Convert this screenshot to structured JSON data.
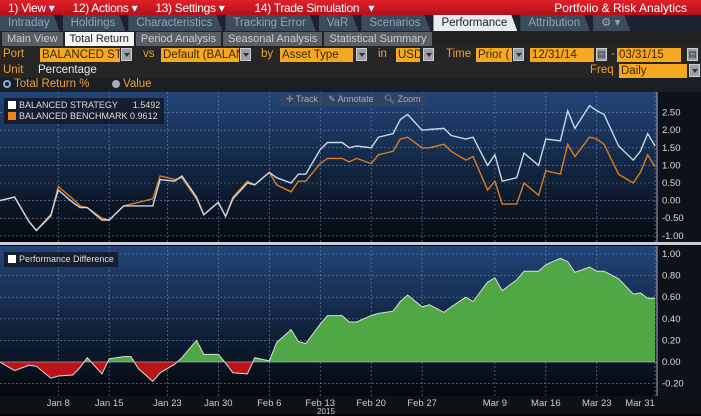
{
  "menu": {
    "items": [
      "1) View",
      "12) Actions",
      "13) Settings",
      "14) Trade Simulation"
    ],
    "title": "Portfolio & Risk Analytics"
  },
  "tabs": [
    "Intraday",
    "Holdings",
    "Characteristics",
    "Tracking Error",
    "VaR",
    "Scenarios",
    "Performance",
    "Attribution"
  ],
  "active_tab": "Performance",
  "subtabs": [
    "Main View",
    "Total Return",
    "Period Analysis",
    "Seasonal Analysis",
    "Statistical Summary"
  ],
  "active_subtab": "Total Return",
  "params": {
    "port_label": "Port",
    "port_value": "BALANCED STRA",
    "vs_label": "vs",
    "vs_value": "Default (BALAN",
    "by_label": "by",
    "by_value": "Asset Type",
    "in_label": "in",
    "in_value": "USD",
    "time_label": "Time",
    "time_value": "Prior (",
    "start_date": "12/31/14",
    "end_date": "03/31/15",
    "unit_label": "Unit",
    "unit_value": "Percentage",
    "freq_label": "Freq",
    "freq_value": "Daily"
  },
  "radios": {
    "option1": "Total Return %",
    "option2": "Value",
    "selected": "Total Return %"
  },
  "toolbar": {
    "track": "Track",
    "annotate": "Annotate",
    "zoom": "Zoom"
  },
  "colors": {
    "menu": "#c8141f",
    "accent": "#f7a823",
    "strategy": "#c8d8ec",
    "benchmark": "#e07a1e",
    "positive": "#4caf45",
    "negative": "#c0161a"
  },
  "chart_data": [
    {
      "type": "line",
      "legend_position": "top-left",
      "grid": true,
      "ylim": [
        -1.1,
        2.9
      ],
      "yticks": [
        "2.50",
        "2.00",
        "1.50",
        "1.00",
        "0.50",
        "0.00",
        "-0.50",
        "-1.00"
      ],
      "x": [
        "2014-12-31",
        "2015-01-02",
        "2015-01-04",
        "2015-01-05",
        "2015-01-07",
        "2015-01-08",
        "2015-01-10",
        "2015-01-11",
        "2015-01-12",
        "2015-01-14",
        "2015-01-15",
        "2015-01-17",
        "2015-01-18",
        "2015-01-19",
        "2015-01-21",
        "2015-01-22",
        "2015-01-24",
        "2015-01-25",
        "2015-01-27",
        "2015-01-28",
        "2015-01-30",
        "2015-01-31",
        "2015-02-01",
        "2015-02-03",
        "2015-02-04",
        "2015-02-06",
        "2015-02-07",
        "2015-02-09",
        "2015-02-10",
        "2015-02-11",
        "2015-02-13",
        "2015-02-14",
        "2015-02-16",
        "2015-02-17",
        "2015-02-18",
        "2015-02-20",
        "2015-02-21",
        "2015-02-23",
        "2015-02-24",
        "2015-02-25",
        "2015-02-27",
        "2015-02-28",
        "2015-03-02",
        "2015-03-03",
        "2015-03-05",
        "2015-03-06",
        "2015-03-08",
        "2015-03-09",
        "2015-03-10",
        "2015-03-12",
        "2015-03-13",
        "2015-03-15",
        "2015-03-16",
        "2015-03-18",
        "2015-03-19",
        "2015-03-20",
        "2015-03-22",
        "2015-03-23",
        "2015-03-24",
        "2015-03-26",
        "2015-03-28",
        "2015-03-29",
        "2015-03-30",
        "2015-03-31"
      ],
      "series": [
        {
          "name": "BALANCED STRATEGY",
          "last": "1.5492",
          "values": [
            0,
            0.1,
            -0.6,
            -0.85,
            -0.4,
            0.3,
            -0.05,
            -0.2,
            -0.2,
            -0.55,
            -0.55,
            -0.15,
            -0.15,
            -0.15,
            -0.15,
            0.6,
            0.55,
            0.7,
            0.1,
            -0.4,
            -0.05,
            -0.45,
            0.05,
            0.5,
            0.45,
            0.8,
            0.65,
            0.5,
            0.75,
            0.75,
            1.45,
            1.65,
            1.65,
            1.5,
            1.55,
            1.5,
            1.8,
            1.9,
            2.3,
            2.45,
            2.0,
            2.02,
            2.05,
            1.85,
            1.75,
            1.8,
            1.0,
            1.3,
            0.55,
            0.65,
            1.35,
            1.0,
            1.75,
            1.7,
            2.55,
            2.05,
            2.7,
            2.55,
            2.45,
            1.55,
            1.15,
            1.4,
            1.9,
            1.55
          ]
        },
        {
          "name": "BALANCED BENCHMARK",
          "last": "0.9612",
          "values": [
            0,
            0.1,
            -0.6,
            -0.85,
            -0.45,
            0.4,
            0.05,
            -0.15,
            -0.2,
            -0.5,
            -0.55,
            -0.15,
            -0.1,
            -0.05,
            0.05,
            0.7,
            0.6,
            0.65,
            0.05,
            -0.4,
            -0.05,
            -0.45,
            0.1,
            0.55,
            0.45,
            0.8,
            0.45,
            0.25,
            0.55,
            0.55,
            1.05,
            1.2,
            1.2,
            1.1,
            1.2,
            1.05,
            1.3,
            1.4,
            1.75,
            1.8,
            1.5,
            1.5,
            1.6,
            1.4,
            1.15,
            1.25,
            0.3,
            0.55,
            -0.1,
            -0.1,
            0.5,
            0.15,
            0.85,
            0.75,
            1.6,
            1.25,
            1.8,
            1.75,
            1.6,
            0.75,
            0.5,
            0.8,
            1.3,
            0.96
          ]
        }
      ]
    },
    {
      "type": "area",
      "legend_position": "top-left",
      "grid": true,
      "ylim": [
        -0.28,
        1.04
      ],
      "yticks": [
        "1.00",
        "0.80",
        "0.60",
        "0.40",
        "0.20",
        "0.00",
        "-0.20"
      ],
      "series": [
        {
          "name": "Performance Difference",
          "values": [
            0,
            -0.08,
            -0.03,
            -0.04,
            -0.15,
            -0.13,
            -0.12,
            -0.05,
            0.04,
            -0.11,
            0.03,
            0.05,
            0.05,
            -0.06,
            -0.18,
            -0.1,
            -0.02,
            0.04,
            0.2,
            0.07,
            0.07,
            -0.01,
            -0.1,
            -0.11,
            0.04,
            0.01,
            0.18,
            0.3,
            0.19,
            0.17,
            0.35,
            0.43,
            0.43,
            0.37,
            0.37,
            0.43,
            0.45,
            0.47,
            0.56,
            0.62,
            0.51,
            0.53,
            0.46,
            0.51,
            0.6,
            0.56,
            0.74,
            0.78,
            0.66,
            0.76,
            0.84,
            0.84,
            0.9,
            0.96,
            0.93,
            0.83,
            0.88,
            0.84,
            0.84,
            0.77,
            0.63,
            0.64,
            0.59,
            0.59
          ]
        }
      ],
      "xticks": [
        {
          "label": "Jan 8",
          "date": "2015-01-08"
        },
        {
          "label": "Jan 15",
          "date": "2015-01-15"
        },
        {
          "label": "Jan 23",
          "date": "2015-01-23"
        },
        {
          "label": "Jan 30",
          "date": "2015-01-30"
        },
        {
          "label": "Feb 6",
          "date": "2015-02-06"
        },
        {
          "label": "Feb 13",
          "date": "2015-02-13"
        },
        {
          "label": "Feb 20",
          "date": "2015-02-20"
        },
        {
          "label": "Feb 27",
          "date": "2015-02-27"
        },
        {
          "label": "Mar 9",
          "date": "2015-03-09"
        },
        {
          "label": "Mar 16",
          "date": "2015-03-16"
        },
        {
          "label": "Mar 23",
          "date": "2015-03-23"
        },
        {
          "label": "Mar 31",
          "date": "2015-03-31"
        }
      ],
      "year_label": "2015"
    }
  ]
}
